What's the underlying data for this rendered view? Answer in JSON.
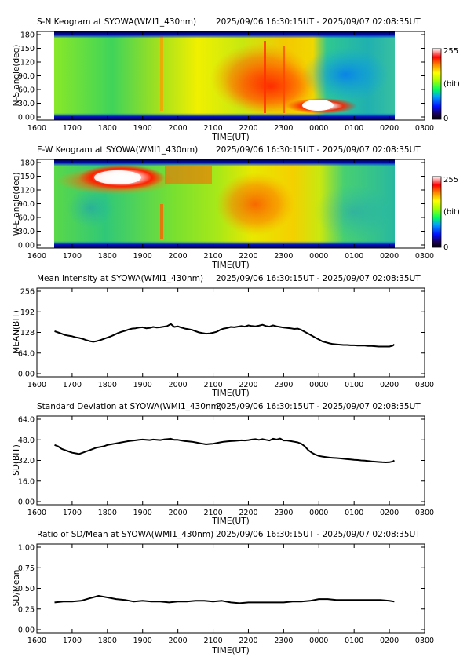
{
  "chart_data": [
    {
      "type": "heatmap",
      "title": "S-N Keogram at SYOWA(WMI1_430nm)",
      "time_range": "2025/09/06 16:30:15UT - 2025/09/07 02:08:35UT",
      "xlabel": "TIME(UT)",
      "ylabel": "N-S angle(deg)",
      "x_ticks": [
        "1600",
        "1700",
        "1800",
        "1900",
        "2000",
        "2100",
        "2200",
        "2300",
        "0000",
        "0100",
        "0200",
        "0300"
      ],
      "y_ticks": [
        "0.00",
        "30.0",
        "60.0",
        "90.0",
        "120",
        "150",
        "180"
      ],
      "ylim": [
        0,
        180
      ],
      "colorbar": {
        "min_label": "0",
        "max_label": "255",
        "unit_label": "(bit)"
      }
    },
    {
      "type": "heatmap",
      "title": "E-W Keogram at SYOWA(WMI1_430nm)",
      "time_range": "2025/09/06 16:30:15UT - 2025/09/07 02:08:35UT",
      "xlabel": "TIME(UT)",
      "ylabel": "W-E angle(deg)",
      "x_ticks": [
        "1600",
        "1700",
        "1800",
        "1900",
        "2000",
        "2100",
        "2200",
        "2300",
        "0000",
        "0100",
        "0200",
        "0300"
      ],
      "y_ticks": [
        "0.00",
        "30.0",
        "60.0",
        "90.0",
        "120",
        "150",
        "180"
      ],
      "ylim": [
        0,
        180
      ],
      "colorbar": {
        "min_label": "0",
        "max_label": "255",
        "unit_label": "(bit)"
      }
    },
    {
      "type": "line",
      "title": "Mean intensity at SYOWA(WMI1_430nm)",
      "time_range": "2025/09/06 16:30:15UT - 2025/09/07 02:08:35UT",
      "xlabel": "TIME(UT)",
      "ylabel": "MEAN(BIT)",
      "x_ticks": [
        "1600",
        "1700",
        "1800",
        "1900",
        "2000",
        "2100",
        "2200",
        "2300",
        "0000",
        "0100",
        "0200",
        "0300"
      ],
      "y_ticks": [
        "0.00",
        "64.0",
        "128",
        "192",
        "256"
      ],
      "ylim": [
        0,
        256
      ],
      "series": [
        {
          "x_hours": [
            16.5,
            16.6,
            16.7,
            16.8,
            16.9,
            17.0,
            17.1,
            17.2,
            17.3,
            17.4,
            17.5,
            17.6,
            17.7,
            17.8,
            17.9,
            18.0,
            18.1,
            18.2,
            18.3,
            18.4,
            18.5,
            18.6,
            18.7,
            18.8,
            18.9,
            19.0,
            19.1,
            19.2,
            19.3,
            19.4,
            19.5,
            19.6,
            19.7,
            19.8,
            19.9,
            20.0,
            20.1,
            20.2,
            20.3,
            20.4,
            20.5,
            20.6,
            20.7,
            20.8,
            20.9,
            21.0,
            21.1,
            21.2,
            21.3,
            21.4,
            21.5,
            21.6,
            21.7,
            21.8,
            21.9,
            22.0,
            22.1,
            22.2,
            22.3,
            22.4,
            22.5,
            22.6,
            22.7,
            22.8,
            22.9,
            23.0,
            23.1,
            23.2,
            23.3,
            23.4,
            23.5,
            23.6,
            23.7,
            23.8,
            23.9,
            24.0,
            24.1,
            24.2,
            24.3,
            24.4,
            24.5,
            24.6,
            24.7,
            24.8,
            24.9,
            25.0,
            25.1,
            25.2,
            25.3,
            25.4,
            25.5,
            25.6,
            25.7,
            25.8,
            25.9,
            26.0,
            26.1,
            26.14
          ],
          "values": [
            132,
            128,
            124,
            120,
            118,
            116,
            113,
            111,
            108,
            104,
            101,
            99,
            101,
            104,
            108,
            112,
            116,
            121,
            126,
            130,
            133,
            137,
            140,
            141,
            143,
            144,
            141,
            142,
            145,
            143,
            144,
            146,
            148,
            154,
            145,
            147,
            143,
            140,
            138,
            136,
            132,
            128,
            126,
            124,
            125,
            127,
            130,
            136,
            140,
            142,
            145,
            144,
            146,
            148,
            146,
            150,
            148,
            147,
            149,
            152,
            148,
            146,
            150,
            147,
            145,
            143,
            142,
            141,
            139,
            140,
            136,
            130,
            124,
            118,
            112,
            106,
            100,
            97,
            94,
            92,
            91,
            90,
            89,
            89,
            88,
            88,
            87,
            87,
            87,
            86,
            86,
            85,
            84,
            84,
            84,
            84,
            87,
            91
          ]
        }
      ]
    },
    {
      "type": "line",
      "title": "Standard Deviation at SYOWA(WMI1_430nm)",
      "time_range": "2025/09/06 16:30:15UT - 2025/09/07 02:08:35UT",
      "xlabel": "TIME(UT)",
      "ylabel": "SD(BIT)",
      "x_ticks": [
        "1600",
        "1700",
        "1800",
        "1900",
        "2000",
        "2100",
        "2200",
        "2300",
        "0000",
        "0100",
        "0200",
        "0300"
      ],
      "y_ticks": [
        "0.00",
        "16.0",
        "32.0",
        "48.0",
        "64.0"
      ],
      "ylim": [
        0,
        64
      ],
      "series": [
        {
          "x_hours": [
            16.5,
            16.6,
            16.7,
            16.8,
            16.9,
            17.0,
            17.1,
            17.2,
            17.3,
            17.4,
            17.5,
            17.6,
            17.7,
            17.8,
            17.9,
            18.0,
            18.1,
            18.2,
            18.3,
            18.4,
            18.5,
            18.6,
            18.7,
            18.8,
            18.9,
            19.0,
            19.1,
            19.2,
            19.3,
            19.4,
            19.5,
            19.6,
            19.7,
            19.8,
            19.9,
            20.0,
            20.1,
            20.2,
            20.3,
            20.4,
            20.5,
            20.6,
            20.7,
            20.8,
            20.9,
            21.0,
            21.1,
            21.2,
            21.3,
            21.4,
            21.5,
            21.6,
            21.7,
            21.8,
            21.9,
            22.0,
            22.1,
            22.2,
            22.3,
            22.4,
            22.5,
            22.6,
            22.7,
            22.8,
            22.9,
            23.0,
            23.1,
            23.2,
            23.3,
            23.4,
            23.5,
            23.6,
            23.7,
            23.8,
            23.9,
            24.0,
            24.1,
            24.2,
            24.3,
            24.4,
            24.5,
            24.6,
            24.7,
            24.8,
            24.9,
            25.0,
            25.1,
            25.2,
            25.3,
            25.4,
            25.5,
            25.6,
            25.7,
            25.8,
            25.9,
            26.0,
            26.1,
            26.14
          ],
          "values": [
            44,
            43,
            41,
            40,
            39,
            38,
            37.5,
            37,
            38,
            39,
            40,
            41,
            42,
            42.5,
            43,
            44,
            44.5,
            45,
            45.5,
            46,
            46.5,
            47,
            47.3,
            47.6,
            48,
            48.2,
            48,
            47.8,
            48.2,
            48,
            47.8,
            48.3,
            48.5,
            48.8,
            48,
            48,
            47.5,
            47,
            46.8,
            46.5,
            46,
            45.5,
            45,
            44.5,
            44.8,
            45,
            45.5,
            46,
            46.5,
            46.8,
            47,
            47.2,
            47.4,
            47.6,
            47.5,
            47.8,
            48.2,
            48.5,
            48,
            48.6,
            48,
            47.5,
            48.8,
            48.2,
            49,
            47.5,
            47.5,
            47,
            46.5,
            46,
            45,
            43,
            40,
            38,
            36.5,
            35.5,
            35,
            34.6,
            34.2,
            34,
            33.8,
            33.6,
            33.3,
            33,
            32.8,
            32.5,
            32.3,
            32,
            31.8,
            31.5,
            31.2,
            31,
            30.8,
            30.6,
            30.5,
            30.6,
            31.2,
            32
          ]
        }
      ]
    },
    {
      "type": "line",
      "title": "Ratio of SD/Mean at SYOWA(WMI1_430nm)",
      "time_range": "2025/09/06 16:30:15UT - 2025/09/07 02:08:35UT",
      "xlabel": "TIME(UT)",
      "ylabel": "SD/Mean",
      "x_ticks": [
        "1600",
        "1700",
        "1800",
        "1900",
        "2000",
        "2100",
        "2200",
        "2300",
        "0000",
        "0100",
        "0200",
        "0300"
      ],
      "y_ticks": [
        "0.00",
        "0.25",
        "0.50",
        "0.75",
        "1.00"
      ],
      "ylim": [
        0,
        1
      ],
      "series": [
        {
          "x_hours": [
            16.5,
            16.75,
            17.0,
            17.25,
            17.5,
            17.75,
            18.0,
            18.25,
            18.5,
            18.75,
            19.0,
            19.25,
            19.5,
            19.75,
            20.0,
            20.25,
            20.5,
            20.75,
            21.0,
            21.25,
            21.5,
            21.75,
            22.0,
            22.25,
            22.5,
            22.75,
            23.0,
            23.25,
            23.5,
            23.75,
            24.0,
            24.25,
            24.5,
            24.75,
            25.0,
            25.25,
            25.5,
            25.75,
            26.0,
            26.14
          ],
          "values": [
            0.33,
            0.34,
            0.34,
            0.35,
            0.38,
            0.41,
            0.39,
            0.37,
            0.36,
            0.34,
            0.35,
            0.34,
            0.34,
            0.33,
            0.34,
            0.34,
            0.35,
            0.35,
            0.34,
            0.35,
            0.33,
            0.32,
            0.33,
            0.33,
            0.33,
            0.33,
            0.33,
            0.34,
            0.34,
            0.35,
            0.37,
            0.37,
            0.36,
            0.36,
            0.36,
            0.36,
            0.36,
            0.36,
            0.35,
            0.34
          ]
        }
      ]
    }
  ]
}
